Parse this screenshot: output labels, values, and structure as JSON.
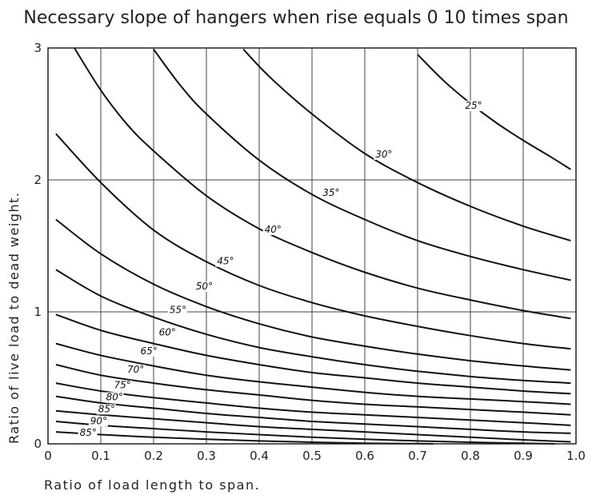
{
  "chart_data": {
    "type": "line",
    "title": "Necessary slope of hangers when rise equals 0 10 times span",
    "xlabel": "Ratio of load length to span.",
    "ylabel": "Ratio of live load to dead weight.",
    "xlim": [
      0,
      1.0
    ],
    "ylim": [
      0,
      3
    ],
    "x_ticks": [
      "0",
      "0.1",
      "0.2",
      "0.3",
      "0.4",
      "0.5",
      "0.6",
      "0.7",
      "0.8",
      "0.9",
      "1.0"
    ],
    "y_ticks": [
      "0",
      "1",
      "2",
      "3"
    ],
    "grid": true,
    "series": [
      {
        "name": "25°",
        "label_at": [
          0.79,
          2.54
        ],
        "x": [
          0.7,
          0.75,
          0.8,
          0.85,
          0.9,
          0.95,
          0.99
        ],
        "y": [
          2.95,
          2.75,
          2.58,
          2.43,
          2.3,
          2.18,
          2.08
        ]
      },
      {
        "name": "30°",
        "label_at": [
          0.62,
          2.17
        ],
        "x": [
          0.37,
          0.42,
          0.5,
          0.6,
          0.7,
          0.8,
          0.9,
          0.99
        ],
        "y": [
          2.99,
          2.78,
          2.5,
          2.2,
          1.98,
          1.8,
          1.65,
          1.54
        ]
      },
      {
        "name": "35°",
        "label_at": [
          0.52,
          1.88
        ],
        "x": [
          0.2,
          0.25,
          0.3,
          0.4,
          0.5,
          0.6,
          0.7,
          0.8,
          0.9,
          0.99
        ],
        "y": [
          2.99,
          2.72,
          2.5,
          2.15,
          1.89,
          1.7,
          1.54,
          1.42,
          1.32,
          1.24
        ]
      },
      {
        "name": "40°",
        "label_at": [
          0.41,
          1.6
        ],
        "x": [
          0.05,
          0.1,
          0.15,
          0.2,
          0.3,
          0.4,
          0.5,
          0.6,
          0.7,
          0.8,
          0.9,
          0.99
        ],
        "y": [
          3.0,
          2.68,
          2.42,
          2.22,
          1.88,
          1.63,
          1.45,
          1.3,
          1.18,
          1.09,
          1.01,
          0.95
        ]
      },
      {
        "name": "45°",
        "label_at": [
          0.32,
          1.36
        ],
        "x": [
          0.015,
          0.1,
          0.2,
          0.3,
          0.4,
          0.5,
          0.6,
          0.7,
          0.8,
          0.9,
          0.99
        ],
        "y": [
          2.35,
          1.98,
          1.62,
          1.38,
          1.2,
          1.07,
          0.97,
          0.89,
          0.82,
          0.76,
          0.72
        ]
      },
      {
        "name": "50°",
        "label_at": [
          0.28,
          1.17
        ],
        "x": [
          0.015,
          0.1,
          0.2,
          0.3,
          0.4,
          0.5,
          0.6,
          0.7,
          0.8,
          0.9,
          0.99
        ],
        "y": [
          1.7,
          1.44,
          1.21,
          1.04,
          0.91,
          0.81,
          0.74,
          0.68,
          0.63,
          0.59,
          0.56
        ]
      },
      {
        "name": "55°",
        "label_at": [
          0.23,
          0.99
        ],
        "x": [
          0.015,
          0.1,
          0.2,
          0.3,
          0.4,
          0.5,
          0.6,
          0.7,
          0.8,
          0.9,
          0.99
        ],
        "y": [
          1.32,
          1.12,
          0.96,
          0.83,
          0.73,
          0.66,
          0.6,
          0.55,
          0.51,
          0.48,
          0.46
        ]
      },
      {
        "name": "60°",
        "label_at": [
          0.21,
          0.82
        ],
        "x": [
          0.015,
          0.1,
          0.2,
          0.3,
          0.4,
          0.5,
          0.6,
          0.7,
          0.8,
          0.9,
          0.99
        ],
        "y": [
          0.98,
          0.86,
          0.76,
          0.67,
          0.6,
          0.54,
          0.5,
          0.46,
          0.43,
          0.4,
          0.38
        ]
      },
      {
        "name": "65°",
        "label_at": [
          0.175,
          0.68
        ],
        "x": [
          0.015,
          0.1,
          0.2,
          0.3,
          0.4,
          0.5,
          0.6,
          0.7,
          0.8,
          0.9,
          0.99
        ],
        "y": [
          0.76,
          0.67,
          0.59,
          0.52,
          0.47,
          0.43,
          0.39,
          0.36,
          0.34,
          0.32,
          0.3
        ]
      },
      {
        "name": "70°",
        "label_at": [
          0.15,
          0.54
        ],
        "x": [
          0.015,
          0.1,
          0.2,
          0.3,
          0.4,
          0.5,
          0.6,
          0.7,
          0.8,
          0.9,
          0.99
        ],
        "y": [
          0.6,
          0.52,
          0.46,
          0.41,
          0.37,
          0.33,
          0.3,
          0.28,
          0.26,
          0.24,
          0.22
        ]
      },
      {
        "name": "75°",
        "label_at": [
          0.125,
          0.42
        ],
        "x": [
          0.015,
          0.1,
          0.2,
          0.3,
          0.4,
          0.5,
          0.6,
          0.7,
          0.8,
          0.9,
          0.99
        ],
        "y": [
          0.46,
          0.4,
          0.35,
          0.31,
          0.27,
          0.24,
          0.22,
          0.2,
          0.18,
          0.16,
          0.14
        ]
      },
      {
        "name": "80°",
        "label_at": [
          0.11,
          0.33
        ],
        "x": [
          0.015,
          0.1,
          0.2,
          0.3,
          0.4,
          0.5,
          0.6,
          0.7,
          0.8,
          0.9,
          0.99
        ],
        "y": [
          0.36,
          0.31,
          0.27,
          0.23,
          0.2,
          0.17,
          0.15,
          0.13,
          0.11,
          0.09,
          0.08
        ]
      },
      {
        "name": "85°",
        "label_at": [
          0.095,
          0.24
        ],
        "x": [
          0.015,
          0.1,
          0.2,
          0.3,
          0.4,
          0.5,
          0.6,
          0.7,
          0.8,
          0.9,
          0.99
        ],
        "y": [
          0.25,
          0.22,
          0.19,
          0.16,
          0.13,
          0.11,
          0.09,
          0.07,
          0.05,
          0.03,
          0.015
        ]
      },
      {
        "name": "90°",
        "label_at": [
          0.08,
          0.15
        ],
        "x": [
          0.015,
          0.1,
          0.2,
          0.3,
          0.4,
          0.5,
          0.6,
          0.7,
          0.8,
          0.9,
          0.96
        ],
        "y": [
          0.17,
          0.14,
          0.115,
          0.09,
          0.07,
          0.05,
          0.035,
          0.022,
          0.012,
          0.004,
          0.0
        ]
      },
      {
        "name": "85°",
        "label_at": [
          0.06,
          0.06
        ],
        "x": [
          0.015,
          0.1,
          0.2,
          0.3,
          0.4,
          0.5,
          0.6,
          0.7,
          0.73
        ],
        "y": [
          0.09,
          0.07,
          0.05,
          0.035,
          0.022,
          0.012,
          0.005,
          0.001,
          0.0
        ]
      }
    ]
  }
}
